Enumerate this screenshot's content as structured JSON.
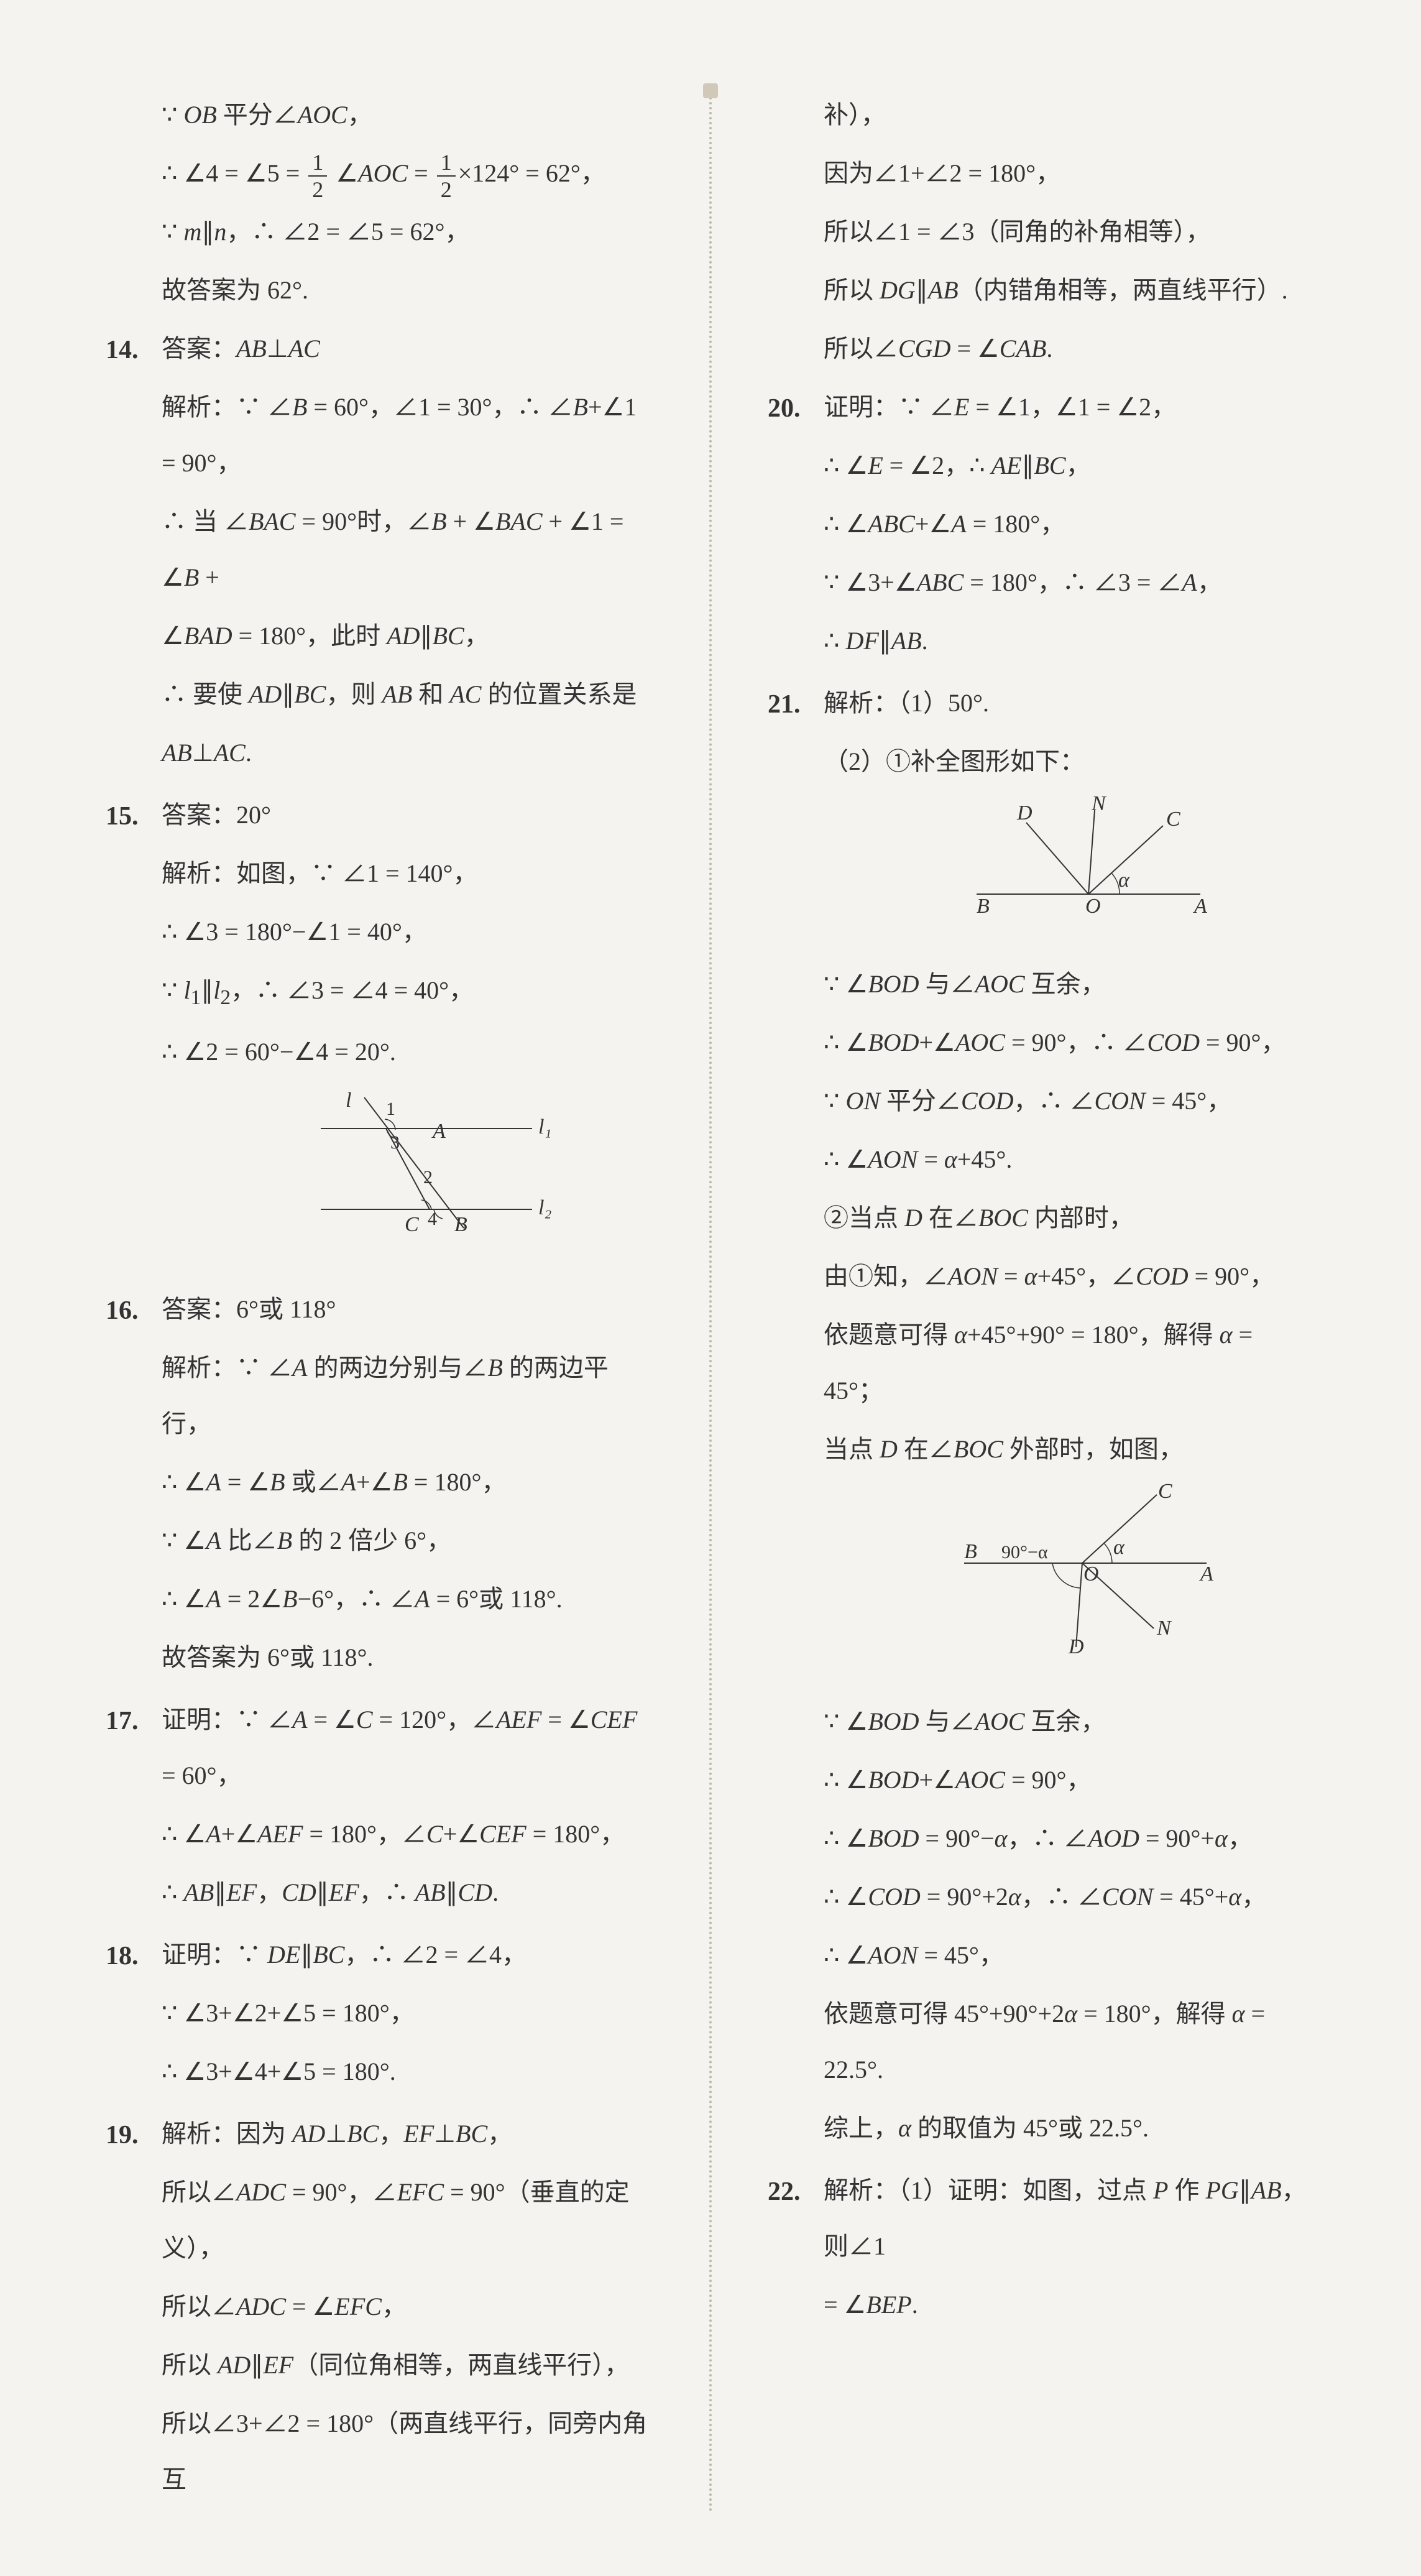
{
  "leftColumn": {
    "intro": [
      "∵ <span class='it'>OB</span> 平分∠<span class='it'>AOC</span>，",
      "∴ ∠4 = ∠5 = <span class='frac'><span class='n'>1</span><span class='d'>2</span></span> ∠<span class='it'>AOC</span> = <span class='frac'><span class='n'>1</span><span class='d'>2</span></span>×124° = 62°，",
      "∵ <span class='it'>m</span>∥<span class='it'>n</span>，∴ ∠2 = ∠5 = 62°，",
      "故答案为 62°."
    ],
    "items": [
      {
        "num": "14.",
        "lines": [
          "答案：<span class='it'>AB</span>⊥<span class='it'>AC</span>",
          "解析：∵ ∠<span class='it'>B</span> = 60°，∠1 = 30°，∴ ∠<span class='it'>B</span>+∠1 = 90°，",
          "∴ 当 ∠<span class='it'>BAC</span> = 90°时，∠<span class='it'>B</span> + ∠<span class='it'>BAC</span> + ∠1 = ∠<span class='it'>B</span> +",
          "∠<span class='it'>BAD</span> = 180°，此时 <span class='it'>AD</span>∥<span class='it'>BC</span>，",
          "∴ 要使 <span class='it'>AD</span>∥<span class='it'>BC</span>，则 <span class='it'>AB</span> 和 <span class='it'>AC</span> 的位置关系是",
          "<span class='it'>AB</span>⊥<span class='it'>AC</span>."
        ]
      },
      {
        "num": "15.",
        "lines": [
          "答案：20°",
          "解析：如图，∵ ∠1 = 140°，",
          "∴ ∠3 = 180°−∠1 = 40°，",
          "∵ <span class='it'>l</span><sub>1</sub>∥<span class='it'>l</span><sub>2</sub>，∴ ∠3 = ∠4 = 40°，",
          "∴ ∠2 = 60°−∠4 = 20°."
        ],
        "diagram": "diag15"
      },
      {
        "num": "16.",
        "lines": [
          "答案：6°或 118°",
          "解析：∵ ∠<span class='it'>A</span> 的两边分别与∠<span class='it'>B</span> 的两边平行，",
          "∴ ∠<span class='it'>A</span> = ∠<span class='it'>B</span> 或∠<span class='it'>A</span>+∠<span class='it'>B</span> = 180°，",
          "∵ ∠<span class='it'>A</span> 比∠<span class='it'>B</span> 的 2 倍少 6°，",
          "∴ ∠<span class='it'>A</span> = 2∠<span class='it'>B</span>−6°，∴ ∠<span class='it'>A</span> = 6°或 118°.",
          "故答案为 6°或 118°."
        ]
      },
      {
        "num": "17.",
        "lines": [
          "证明：∵ ∠<span class='it'>A</span> = ∠<span class='it'>C</span> = 120°，∠<span class='it'>AEF</span> = ∠<span class='it'>CEF</span> = 60°，",
          "∴ ∠<span class='it'>A</span>+∠<span class='it'>AEF</span> = 180°，∠<span class='it'>C</span>+∠<span class='it'>CEF</span> = 180°，",
          "∴ <span class='it'>AB</span>∥<span class='it'>EF</span>，<span class='it'>CD</span>∥<span class='it'>EF</span>，∴ <span class='it'>AB</span>∥<span class='it'>CD</span>."
        ]
      },
      {
        "num": "18.",
        "lines": [
          "证明：∵ <span class='it'>DE</span>∥<span class='it'>BC</span>，∴ ∠2 = ∠4，<span class='watermark'></span>",
          "∵ ∠3+∠2+∠5 = 180°，",
          "∴ ∠3+∠4+∠5 = 180°."
        ]
      },
      {
        "num": "19.",
        "lines": [
          "解析：因为 <span class='it'>AD</span>⊥<span class='it'>BC</span>，<span class='it'>EF</span>⊥<span class='it'>BC</span>，",
          "所以∠<span class='it'>ADC</span> = 90°，∠<span class='it'>EFC</span> = 90°（垂直的定义），",
          "所以∠<span class='it'>ADC</span> = ∠<span class='it'>EFC</span>，<span class='watermark'></span>",
          "所以 <span class='it'>AD</span>∥<span class='it'>EF</span>（同位角相等，两直线平行），",
          "所以∠3+∠2 = 180°（两直线平行，同旁内角互"
        ]
      }
    ]
  },
  "rightColumn": {
    "intro": [
      "补），",
      "因为∠1+∠2 = 180°，",
      "所以∠1 = ∠3（同角的补角相等），",
      "所以 <span class='it'>DG</span>∥<span class='it'>AB</span>（内错角相等，两直线平行）.",
      "所以∠<span class='it'>CGD</span> = ∠<span class='it'>CAB</span>."
    ],
    "items": [
      {
        "num": "20.",
        "lines": [
          "证明：∵ ∠<span class='it'>E</span> = ∠1，∠1 = ∠2，",
          "∴ ∠<span class='it'>E</span> = ∠2，∴ <span class='it'>AE</span>∥<span class='it'>BC</span>，",
          "∴ ∠<span class='it'>ABC</span>+∠<span class='it'>A</span> = 180°，",
          "∵ ∠3+∠<span class='it'>ABC</span> = 180°，∴ ∠3 = ∠<span class='it'>A</span>，",
          "∴ <span class='it'>DF</span>∥<span class='it'>AB</span>."
        ]
      },
      {
        "num": "21.",
        "lines": [
          "解析：（1）50°.",
          "（2）①补全图形如下："
        ],
        "diagram": "diag21a",
        "lines2": [
          "∵ ∠<span class='it'>BOD</span> 与∠<span class='it'>AOC</span> 互余，",
          "∴ ∠<span class='it'>BOD</span>+∠<span class='it'>AOC</span> = 90°，∴ ∠<span class='it'>COD</span> = 90°，",
          "∵ <span class='it'>ON</span> 平分∠<span class='it'>COD</span>，∴ ∠<span class='it'>CON</span> = 45°，",
          "∴ ∠<span class='it'>AON</span> = <span class='it'>α</span>+45°.",
          "②当点 <span class='it'>D</span> 在∠<span class='it'>BOC</span> 内部时，",
          "由①知，∠<span class='it'>AON</span> = <span class='it'>α</span>+45°，∠<span class='it'>COD</span> = 90°，",
          "依题意可得 <span class='it'>α</span>+45°+90° = 180°，解得 <span class='it'>α</span> = 45°；",
          "当点 <span class='it'>D</span> 在∠<span class='it'>BOC</span> 外部时，如图，"
        ],
        "diagram2": "diag21b",
        "lines3": [
          "∵ ∠<span class='it'>BOD</span> 与∠<span class='it'>AOC</span> 互余，",
          "∴ ∠<span class='it'>BOD</span>+∠<span class='it'>AOC</span> = 90°，",
          "∴ ∠<span class='it'>BOD</span> = 90°−<span class='it'>α</span>，∴ ∠<span class='it'>AOD</span> = 90°+<span class='it'>α</span>，",
          "∴ ∠<span class='it'>COD</span> = 90°+2<span class='it'>α</span>，∴ ∠<span class='it'>CON</span> = 45°+<span class='it'>α</span>，",
          "∴ ∠<span class='it'>AON</span> = 45°，",
          "依题意可得 45°+90°+2<span class='it'>α</span> = 180°，解得 <span class='it'>α</span> = 22.5°.",
          "综上，<span class='it'>α</span> 的取值为 45°或 22.5°."
        ]
      },
      {
        "num": "22.",
        "lines": [
          "解析：（1）证明：如图，过点 <span class='it'>P</span> 作 <span class='it'>PG</span>∥<span class='it'>AB</span>，则∠1",
          "= ∠<span class='it'>BEP</span>."
        ]
      }
    ]
  },
  "diag15": {
    "l": "l",
    "l1": "l₁",
    "l2": "l₂",
    "A": "A",
    "B": "B",
    "C": "C",
    "n1": "1",
    "n2": "2",
    "n3": "3",
    "n4": "4"
  },
  "diag21a": {
    "B": "B",
    "O": "O",
    "A": "A",
    "D": "D",
    "N": "N",
    "C": "C",
    "alpha": "α"
  },
  "diag21b": {
    "B": "B",
    "O": "O",
    "A": "A",
    "D": "D",
    "N": "N",
    "C": "C",
    "alpha": "α",
    "label": "90°−α"
  },
  "colors": {
    "text": "#333",
    "bg": "#f5f3f0",
    "divider": "#c2b8a8"
  }
}
